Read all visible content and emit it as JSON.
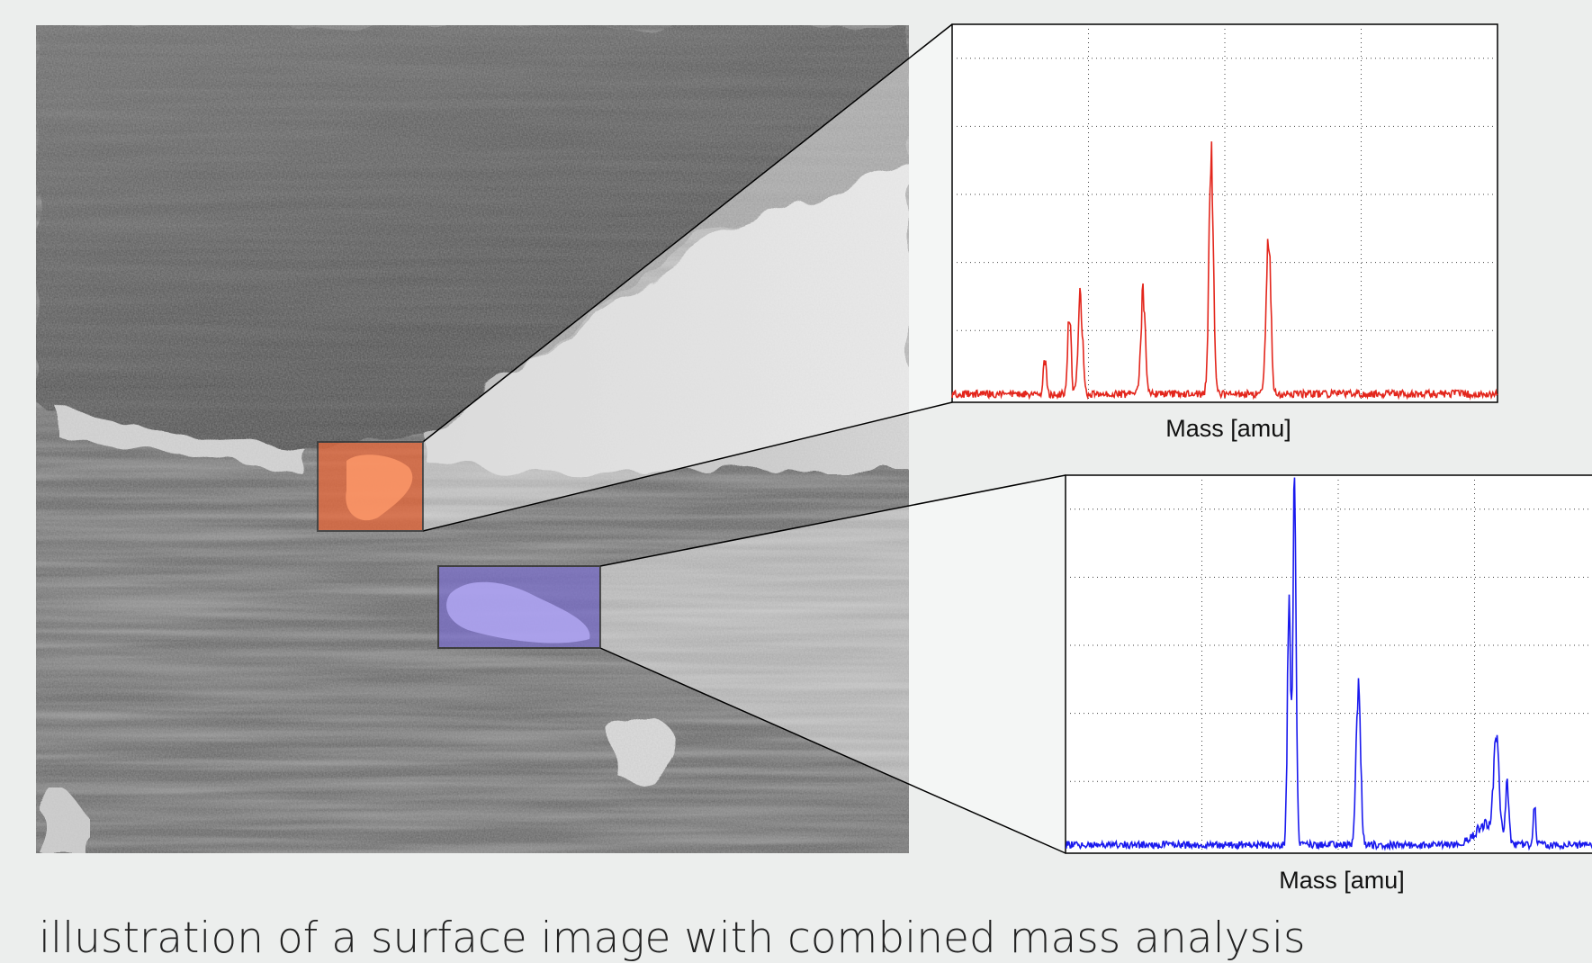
{
  "spectra": [
    {
      "xlabel": "Mass [amu]"
    },
    {
      "xlabel": "Mass [amu]"
    }
  ],
  "caption": "illustration of a surface image with combined mass analysis"
}
